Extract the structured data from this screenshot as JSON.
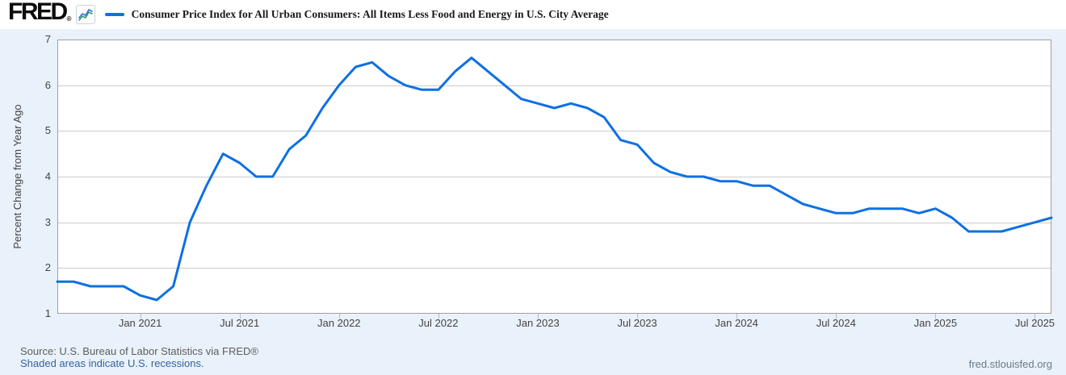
{
  "header": {
    "logo_text": "FRED",
    "logo_registered": "®",
    "legend_series_label": "Consumer Price Index for All Urban Consumers: All Items Less Food and Energy in U.S. City Average"
  },
  "colors": {
    "series_line": "#0e70e2",
    "page_bg": "#e9f1fa",
    "plot_bg": "#ffffff",
    "plot_border": "#a0a0a0",
    "gridline": "#cccccc",
    "tick_mark": "#b0bcc7",
    "axis_text": "#434343",
    "link": "#36649e",
    "source_text": "#5e5e5e",
    "watermark_text": "#6b7b8a"
  },
  "y_axis": {
    "title": "Percent Change from Year Ago",
    "ticks": [
      7,
      6,
      5,
      4,
      3,
      2,
      1
    ]
  },
  "x_axis": {
    "ticks": [
      "Jan 2021",
      "Jul 2021",
      "Jan 2022",
      "Jul 2022",
      "Jan 2023",
      "Jul 2023",
      "Jan 2024",
      "Jul 2024",
      "Jan 2025",
      "Jul 2025"
    ]
  },
  "footer": {
    "source": "Source: U.S. Bureau of Labor Statistics via FRED®",
    "recession_note": "Shaded areas indicate U.S. recessions.",
    "watermark": "fred.stlouisfed.org"
  },
  "chart_data": {
    "type": "line",
    "title": "Consumer Price Index for All Urban Consumers: All Items Less Food and Energy in U.S. City Average",
    "ylabel": "Percent Change from Year Ago",
    "ylim": [
      1,
      7
    ],
    "grid": "horizontal-only",
    "legend_position": "top",
    "line_color": "#0e70e2",
    "categories": [
      "Aug 2020",
      "Sep 2020",
      "Oct 2020",
      "Nov 2020",
      "Dec 2020",
      "Jan 2021",
      "Feb 2021",
      "Mar 2021",
      "Apr 2021",
      "May 2021",
      "Jun 2021",
      "Jul 2021",
      "Aug 2021",
      "Sep 2021",
      "Oct 2021",
      "Nov 2021",
      "Dec 2021",
      "Jan 2022",
      "Feb 2022",
      "Mar 2022",
      "Apr 2022",
      "May 2022",
      "Jun 2022",
      "Jul 2022",
      "Aug 2022",
      "Sep 2022",
      "Oct 2022",
      "Nov 2022",
      "Dec 2022",
      "Jan 2023",
      "Feb 2023",
      "Mar 2023",
      "Apr 2023",
      "May 2023",
      "Jun 2023",
      "Jul 2023",
      "Aug 2023",
      "Sep 2023",
      "Oct 2023",
      "Nov 2023",
      "Dec 2023",
      "Jan 2024",
      "Feb 2024",
      "Mar 2024",
      "Apr 2024",
      "May 2024",
      "Jun 2024",
      "Jul 2024",
      "Aug 2024",
      "Sep 2024",
      "Oct 2024",
      "Nov 2024",
      "Dec 2024",
      "Jan 2025",
      "Feb 2025",
      "Mar 2025",
      "Apr 2025",
      "May 2025",
      "Jun 2025",
      "Jul 2025",
      "Aug 2025"
    ],
    "values": [
      1.7,
      1.7,
      1.6,
      1.6,
      1.6,
      1.4,
      1.3,
      1.6,
      3.0,
      3.8,
      4.5,
      4.3,
      4.0,
      4.0,
      4.6,
      4.9,
      5.5,
      6.0,
      6.4,
      6.5,
      6.2,
      6.0,
      5.9,
      5.9,
      6.3,
      6.6,
      6.3,
      6.0,
      5.7,
      5.6,
      5.5,
      5.6,
      5.5,
      5.3,
      4.8,
      4.7,
      4.3,
      4.1,
      4.0,
      4.0,
      3.9,
      3.9,
      3.8,
      3.8,
      3.6,
      3.4,
      3.3,
      3.2,
      3.2,
      3.3,
      3.3,
      3.3,
      3.2,
      3.3,
      3.1,
      2.8,
      2.8,
      2.8,
      2.9,
      3.0,
      3.1
    ]
  }
}
